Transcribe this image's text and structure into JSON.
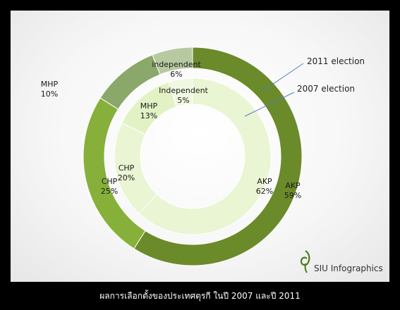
{
  "caption": "ผลการเลือกตั้งของประเทศตุรกี ในปี 2007 และปี 2011",
  "brand": {
    "name": "SIU Infographics",
    "logo_icon": "swirl-logo-icon"
  },
  "chart_data": {
    "type": "pie",
    "variant": "doughnut",
    "categories": [
      "AKP",
      "CHP",
      "MHP",
      "independent"
    ],
    "series": [
      {
        "name": "2011 election",
        "ring": "outer",
        "values": [
          59,
          25,
          10,
          6
        ],
        "colors": [
          "#6b8a2a",
          "#86b03a",
          "#8aa86a",
          "#b7c9a0"
        ],
        "labels": [
          {
            "name": "AKP",
            "pct": "59%"
          },
          {
            "name": "CHP",
            "pct": "25%"
          },
          {
            "name": "MHP",
            "pct": "10%"
          },
          {
            "name": "independent",
            "pct": "6%"
          }
        ]
      },
      {
        "name": "2007 election",
        "ring": "inner",
        "values": [
          62,
          20,
          13,
          5
        ],
        "colors": [
          "#e9f5d3",
          "#e9f5d3",
          "#e2f2c5",
          "#f0f8e2"
        ],
        "labels": [
          {
            "name": "AKP",
            "pct": "62%"
          },
          {
            "name": "CHP",
            "pct": "20%"
          },
          {
            "name": "MHP",
            "pct": "13%"
          },
          {
            "name": "Independent",
            "pct": "5%"
          }
        ]
      }
    ],
    "annotations": [
      "2011 election",
      "2007 election"
    ],
    "accent": "#4f7fc7"
  }
}
